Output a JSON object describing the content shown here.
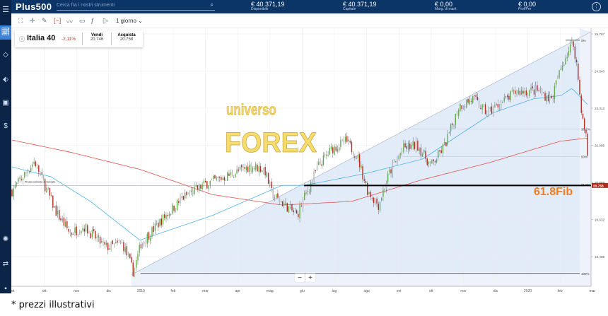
{
  "header": {
    "logo": "Plus500",
    "search_placeholder": "Cerca fra i nostri strumenti",
    "stats": [
      {
        "value": "€ 40.371,19",
        "label": "Disponibile"
      },
      {
        "value": "€ 40.371,19",
        "label": "Capitale"
      },
      {
        "value": "€ 0,00",
        "label": "Marg. di mant."
      },
      {
        "value": "€ 0,00",
        "label": "Prof/Per"
      }
    ]
  },
  "toolbar": {
    "timeframe": "1 giorno",
    "icons": [
      "fullscreen-icon",
      "crosshair-icon",
      "pencil-icon",
      "indicator-icon",
      "line-chart-icon",
      "save-icon",
      "function-icon",
      "candlestick-type-icon"
    ]
  },
  "instrument": {
    "name": "Italia 40",
    "change": "-2,11%",
    "sell_label": "Vendi",
    "sell": "20.746",
    "buy_label": "Acquista",
    "buy": "20.758"
  },
  "sidebar": {
    "icons": [
      "menu-icon",
      "chart-icon",
      "portfolio-icon",
      "tag-icon",
      "briefcase-icon",
      "dollar-icon",
      "settings-icon",
      "refresh-icon",
      "chat-icon"
    ]
  },
  "watermark": {
    "line1": "universo",
    "line2": "FOREX"
  },
  "annotation": {
    "fib_text": "61.8Fib",
    "market_price_label": "Prezzo corrente di mercato"
  },
  "zoom": {
    "minus": "−",
    "plus": "+"
  },
  "footer": "* prezzi illustrativi",
  "colors": {
    "up": "#5fae4a",
    "down": "#b52a1e",
    "ma_fast": "#4fb3e8",
    "ma_slow": "#e0524a",
    "fib_fill": "#dde8f8",
    "price_tag": "#b52a1e",
    "fib_text": "#f47a1f",
    "header": "#0b3467"
  },
  "chart_data": {
    "type": "candlestick",
    "timeframe": "1 giorno",
    "y_ticks": [
      "25.767",
      "24.540",
      "23.313",
      "22.086",
      "20.859",
      "19.632",
      "18.405"
    ],
    "ylim": [
      17.75,
      25.95
    ],
    "x_ticks": [
      "set",
      "ott",
      "nov",
      "dic",
      "2019",
      "feb",
      "mar",
      "apr",
      "mag",
      "giu",
      "lug",
      "ago",
      "set",
      "ott",
      "nov",
      "dic",
      "2020",
      "feb",
      "mar"
    ],
    "x_range": [
      "2018-09-01",
      "2020-03-04"
    ],
    "current_price": "20.758",
    "close_path": [
      [
        "2018-09-01",
        20.58
      ],
      [
        "2018-09-22",
        21.56
      ],
      [
        "2018-10-12",
        19.88
      ],
      [
        "2018-10-25",
        19.18
      ],
      [
        "2018-11-08",
        19.4
      ],
      [
        "2018-11-28",
        18.71
      ],
      [
        "2018-12-14",
        18.83
      ],
      [
        "2018-12-24",
        17.89
      ],
      [
        "2019-01-01",
        18.83
      ],
      [
        "2019-01-21",
        19.65
      ],
      [
        "2019-02-10",
        20.35
      ],
      [
        "2019-03-01",
        20.81
      ],
      [
        "2019-03-20",
        21.05
      ],
      [
        "2019-04-13",
        21.4
      ],
      [
        "2019-04-26",
        21.3
      ],
      [
        "2019-05-03",
        20.46
      ],
      [
        "2019-05-19",
        20.0
      ],
      [
        "2019-05-26",
        19.76
      ],
      [
        "2019-06-03",
        20.35
      ],
      [
        "2019-06-16",
        21.4
      ],
      [
        "2019-06-29",
        21.98
      ],
      [
        "2019-07-12",
        22.22
      ],
      [
        "2019-07-22",
        21.75
      ],
      [
        "2019-08-02",
        20.58
      ],
      [
        "2019-08-12",
        20.11
      ],
      [
        "2019-08-22",
        21.16
      ],
      [
        "2019-09-05",
        21.98
      ],
      [
        "2019-09-18",
        22.1
      ],
      [
        "2019-10-01",
        21.4
      ],
      [
        "2019-10-14",
        22.1
      ],
      [
        "2019-10-27",
        23.38
      ],
      [
        "2019-11-10",
        23.62
      ],
      [
        "2019-11-23",
        23.15
      ],
      [
        "2019-12-07",
        23.5
      ],
      [
        "2019-12-20",
        23.85
      ],
      [
        "2020-01-10",
        23.9
      ],
      [
        "2020-01-23",
        23.6
      ],
      [
        "2020-01-29",
        24.32
      ],
      [
        "2020-02-06",
        25.02
      ],
      [
        "2020-02-13",
        25.49
      ],
      [
        "2020-02-16",
        24.9
      ],
      [
        "2020-02-19",
        23.85
      ],
      [
        "2020-02-22",
        22.92
      ],
      [
        "2020-02-26",
        22.22
      ],
      [
        "2020-02-28",
        20.76
      ]
    ],
    "ma_fast": [
      [
        "2018-09-01",
        21.37
      ],
      [
        "2018-10-07",
        21.05
      ],
      [
        "2018-11-14",
        20.23
      ],
      [
        "2018-12-30",
        18.95
      ],
      [
        "2019-03-07",
        19.76
      ],
      [
        "2019-05-12",
        20.76
      ],
      [
        "2019-06-03",
        20.76
      ],
      [
        "2019-08-01",
        21.16
      ],
      [
        "2019-09-23",
        21.63
      ],
      [
        "2019-11-28",
        23.15
      ],
      [
        "2020-01-06",
        23.62
      ],
      [
        "2020-02-02",
        23.73
      ],
      [
        "2020-02-12",
        23.97
      ],
      [
        "2020-02-28",
        23.38
      ]
    ],
    "ma_slow": [
      [
        "2018-09-01",
        22.26
      ],
      [
        "2018-10-25",
        21.86
      ],
      [
        "2019-01-01",
        21.28
      ],
      [
        "2019-03-07",
        20.46
      ],
      [
        "2019-05-12",
        20.11
      ],
      [
        "2019-07-17",
        20.23
      ],
      [
        "2019-09-21",
        20.93
      ],
      [
        "2019-11-26",
        21.52
      ],
      [
        "2020-02-01",
        22.22
      ],
      [
        "2020-02-28",
        22.33
      ]
    ],
    "fibonacci": {
      "from": [
        "2018-12-24",
        17.85
      ],
      "to": [
        "2020-02-13",
        25.56
      ],
      "levels": [
        {
          "label": "0%",
          "value": 25.56
        },
        {
          "label": "38.2%",
          "value": 22.62
        },
        {
          "label": "50%",
          "value": 21.71
        },
        {
          "label": "61.8%",
          "value": 20.79
        },
        {
          "label": "100%",
          "value": 17.85
        }
      ]
    }
  }
}
